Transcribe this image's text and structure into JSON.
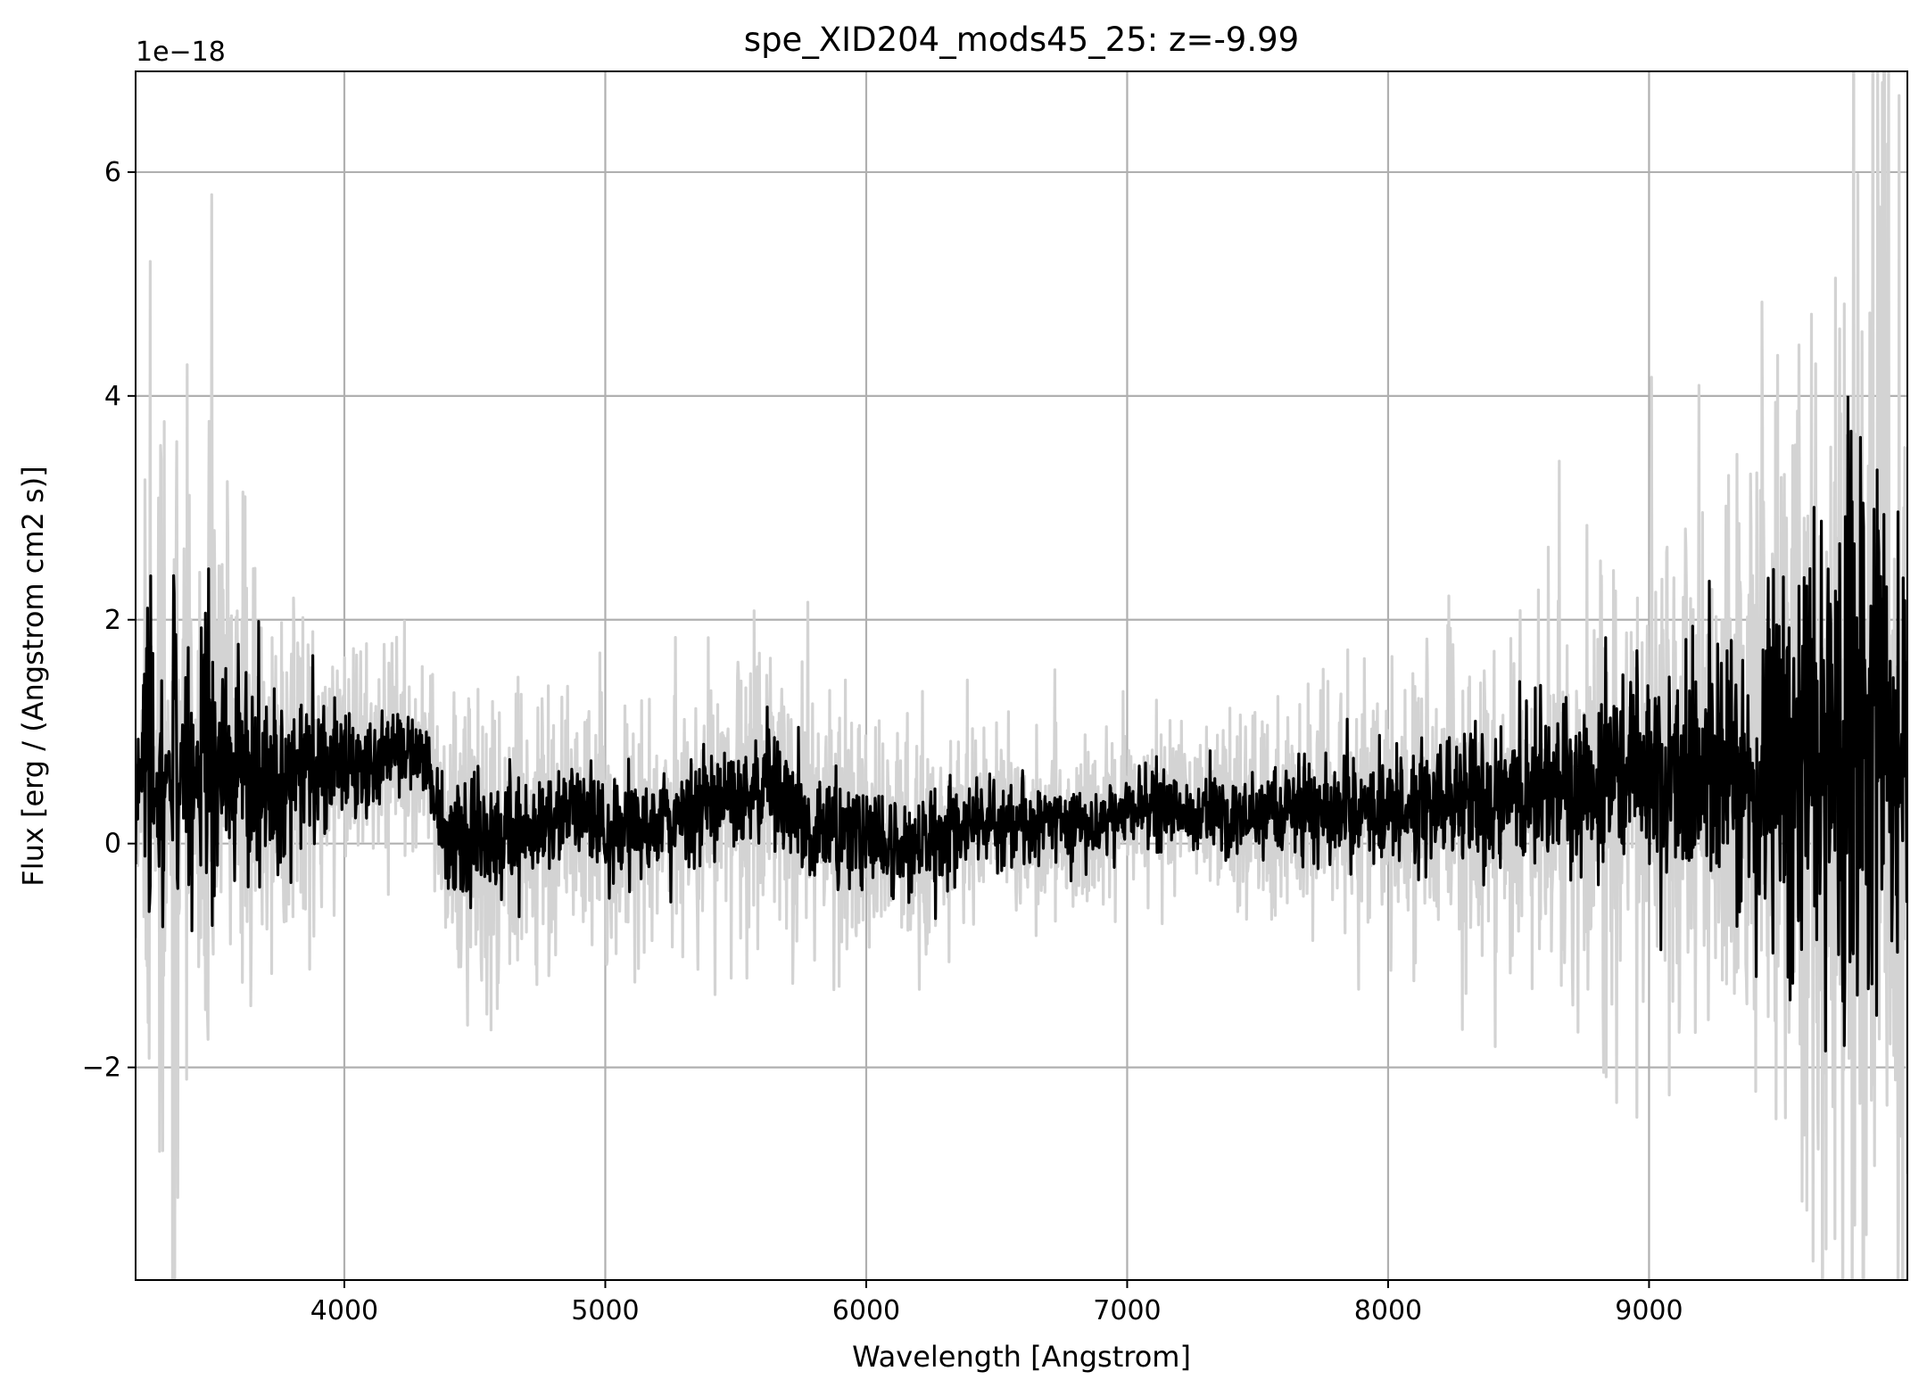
{
  "chart_data": {
    "type": "line",
    "title": "spe_XID204_mods45_25: z=-9.99",
    "xlabel": "Wavelength [Angstrom]",
    "ylabel": "Flux [erg / (Angstrom cm2 s)]",
    "y_offset_label": "1e−18",
    "xlim": [
      3200,
      9990
    ],
    "ylim": [
      -3.9,
      6.9
    ],
    "x_ticks": [
      4000,
      5000,
      6000,
      7000,
      8000,
      9000
    ],
    "x_tick_labels": [
      "4000",
      "5000",
      "6000",
      "7000",
      "8000",
      "9000"
    ],
    "y_ticks": [
      -2,
      0,
      2,
      4,
      6
    ],
    "y_tick_labels": [
      "−2",
      "0",
      "2",
      "4",
      "6"
    ],
    "grid": true,
    "colors": {
      "flux": "#000000",
      "error": "#d3d3d3",
      "grid": "#b0b0b0"
    },
    "series": [
      {
        "role": "error",
        "x": [
          3200,
          3250,
          3300,
          3350,
          3400,
          3450,
          3500,
          3550,
          3600,
          3650,
          3700,
          3750,
          3800,
          3850,
          3900,
          3950,
          4000,
          4100,
          4200,
          4300,
          4400,
          4500,
          4600,
          4700,
          4800,
          4900,
          5000,
          5100,
          5200,
          5300,
          5400,
          5500,
          5600,
          5700,
          5800,
          5900,
          6000,
          6100,
          6200,
          6300,
          6400,
          6500,
          6600,
          6700,
          6800,
          6900,
          7000,
          7100,
          7200,
          7300,
          7400,
          7500,
          7600,
          7700,
          7800,
          7900,
          8000,
          8100,
          8200,
          8300,
          8400,
          8500,
          8600,
          8700,
          8800,
          8900,
          9000,
          9100,
          9200,
          9300,
          9400,
          9500,
          9600,
          9700,
          9750,
          9800,
          9850,
          9900,
          9950,
          9990
        ],
        "y": [
          -1.5,
          4.8,
          -3.9,
          5.5,
          -3.9,
          3.9,
          3.2,
          2.6,
          2.8,
          2.4,
          2.2,
          2.1,
          2.0,
          2.0,
          1.8,
          1.8,
          1.7,
          1.6,
          1.6,
          1.4,
          1.1,
          1.2,
          1.2,
          1.1,
          1.1,
          1.1,
          1.0,
          1.0,
          1.1,
          1.2,
          1.3,
          1.4,
          1.5,
          1.4,
          1.2,
          1.1,
          1.0,
          0.9,
          0.9,
          0.9,
          0.9,
          0.9,
          0.9,
          0.9,
          0.9,
          0.9,
          0.9,
          0.9,
          0.9,
          0.9,
          1.0,
          1.0,
          1.1,
          1.1,
          1.2,
          1.3,
          1.3,
          1.4,
          1.5,
          1.6,
          1.7,
          1.9,
          2.0,
          2.1,
          2.2,
          2.4,
          2.5,
          2.6,
          2.8,
          3.0,
          3.4,
          3.8,
          4.2,
          4.8,
          5.2,
          5.6,
          6.1,
          6.9,
          5.0,
          4.5
        ]
      },
      {
        "role": "flux",
        "x": [
          3200,
          3250,
          3300,
          3350,
          3400,
          3450,
          3500,
          3550,
          3600,
          3650,
          3700,
          3750,
          3800,
          3850,
          3900,
          3950,
          4000,
          4100,
          4200,
          4300,
          4400,
          4500,
          4600,
          4700,
          4800,
          4900,
          5000,
          5100,
          5200,
          5300,
          5400,
          5500,
          5600,
          5700,
          5800,
          5900,
          6000,
          6100,
          6200,
          6300,
          6400,
          6500,
          6600,
          6700,
          6800,
          6900,
          7000,
          7100,
          7200,
          7300,
          7400,
          7500,
          7600,
          7700,
          7800,
          7900,
          8000,
          8100,
          8200,
          8300,
          8400,
          8500,
          8600,
          8700,
          8800,
          8900,
          9000,
          9100,
          9200,
          9300,
          9400,
          9500,
          9600,
          9700,
          9750,
          9800,
          9850,
          9900,
          9950,
          9990
        ],
        "y": [
          0.6,
          0.5,
          0.4,
          0.8,
          0.6,
          0.7,
          0.8,
          0.9,
          0.7,
          0.6,
          0.6,
          0.6,
          0.6,
          0.7,
          0.7,
          0.7,
          0.7,
          0.7,
          0.8,
          0.8,
          0.0,
          0.0,
          0.0,
          0.1,
          0.2,
          0.3,
          0.1,
          0.1,
          0.2,
          0.3,
          0.4,
          0.4,
          0.5,
          0.4,
          0.2,
          0.1,
          0.1,
          0.0,
          0.0,
          0.1,
          0.2,
          0.2,
          0.2,
          0.2,
          0.2,
          0.2,
          0.3,
          0.3,
          0.3,
          0.3,
          0.2,
          0.3,
          0.3,
          0.3,
          0.3,
          0.3,
          0.3,
          0.3,
          0.4,
          0.4,
          0.4,
          0.5,
          0.5,
          0.5,
          0.5,
          0.6,
          0.6,
          0.6,
          0.6,
          0.6,
          0.6,
          0.7,
          0.7,
          0.8,
          0.8,
          0.9,
          0.9,
          1.0,
          0.8,
          0.5
        ]
      }
    ]
  }
}
